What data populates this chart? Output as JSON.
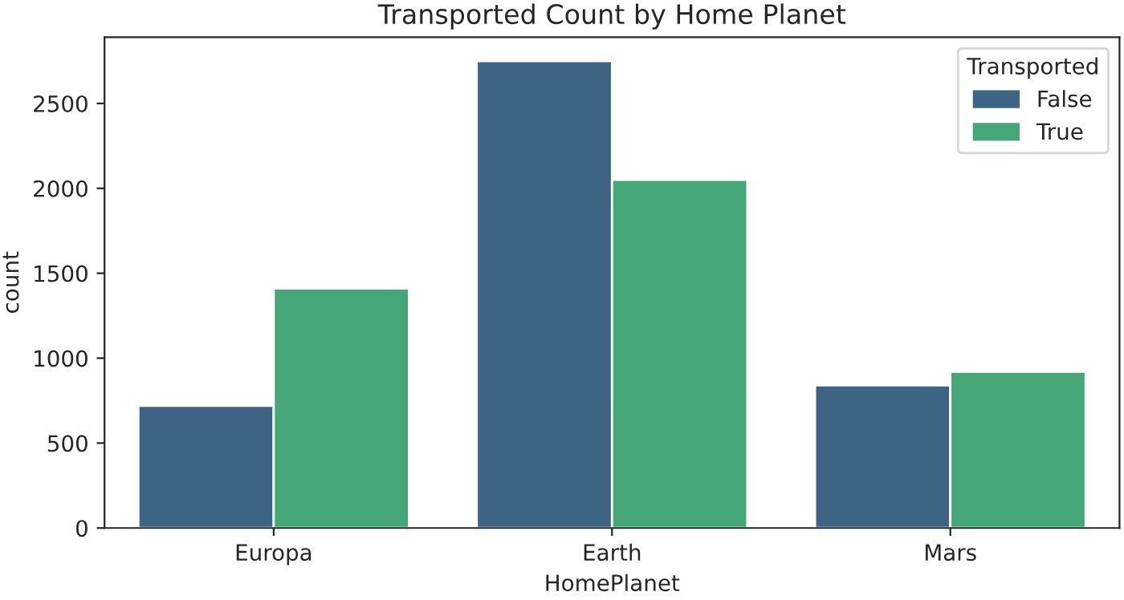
{
  "chart_data": {
    "type": "bar",
    "title": "Transported Count by Home Planet",
    "xlabel": "HomePlanet",
    "ylabel": "count",
    "categories": [
      "Europa",
      "Earth",
      "Mars"
    ],
    "series": [
      {
        "name": "False",
        "color": "#3d6583",
        "values": [
          720,
          2750,
          840
        ]
      },
      {
        "name": "True",
        "color": "#45a778",
        "values": [
          1410,
          2050,
          920
        ]
      }
    ],
    "legend_title": "Transported",
    "legend": "top right",
    "ylim": [
      0,
      2890
    ],
    "yticks": [
      0,
      500,
      1000,
      1500,
      2000,
      2500
    ],
    "grid": false
  }
}
